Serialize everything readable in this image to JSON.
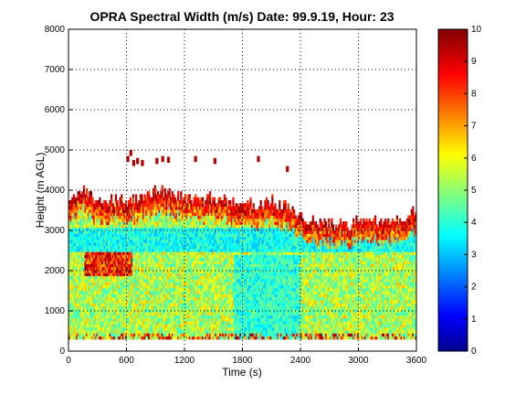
{
  "chart_data": {
    "type": "heatmap",
    "title": "OPRA Spectral Width (m/s)  Date: 99.9.19, Hour: 23",
    "xlabel": "Time (s)",
    "ylabel": "Height (m AGL)",
    "xlim": [
      0,
      3600
    ],
    "ylim": [
      0,
      8000
    ],
    "xticks": [
      0,
      600,
      1200,
      1800,
      2400,
      3000,
      3600
    ],
    "yticks": [
      0,
      1000,
      2000,
      3000,
      4000,
      5000,
      6000,
      7000,
      8000
    ],
    "grid": true,
    "colormap": "jet",
    "colorbar": {
      "range": [
        0,
        10
      ],
      "ticks": [
        0,
        1,
        2,
        3,
        4,
        5,
        6,
        7,
        8,
        9,
        10
      ],
      "placement": "right"
    },
    "data_region": {
      "time_range_s": [
        0,
        3600
      ],
      "lowest_gate_m": 300,
      "echo_top_profile_m": [
        [
          0,
          3700
        ],
        [
          150,
          4000
        ],
        [
          300,
          3650
        ],
        [
          450,
          3750
        ],
        [
          600,
          3700
        ],
        [
          750,
          3800
        ],
        [
          900,
          4000
        ],
        [
          1050,
          3900
        ],
        [
          1200,
          3750
        ],
        [
          1350,
          3700
        ],
        [
          1500,
          3800
        ],
        [
          1650,
          3650
        ],
        [
          1800,
          3700
        ],
        [
          1950,
          3600
        ],
        [
          2100,
          3700
        ],
        [
          2250,
          3550
        ],
        [
          2400,
          3300
        ],
        [
          2550,
          3200
        ],
        [
          2700,
          3150
        ],
        [
          2850,
          3100
        ],
        [
          3000,
          3200
        ],
        [
          3150,
          3250
        ],
        [
          3300,
          3150
        ],
        [
          3450,
          3250
        ],
        [
          3600,
          3500
        ]
      ],
      "notable_regions": [
        {
          "description": "high width (8-10 m/s) near echo top",
          "value_range": [
            8,
            10
          ]
        },
        {
          "description": "cyan band at 2400-3000 m",
          "value_range": [
            3,
            4.5
          ]
        },
        {
          "description": "lower layers mostly 4-7 m/s",
          "value_range": [
            4,
            7
          ]
        },
        {
          "description": "red patches 1800-2600 m between 150 and 650 s",
          "value_range": [
            8,
            10
          ]
        },
        {
          "description": "isolated echoes 4500-5000 m between 600 and 1050 s",
          "value_range": [
            8,
            10
          ]
        }
      ]
    }
  }
}
